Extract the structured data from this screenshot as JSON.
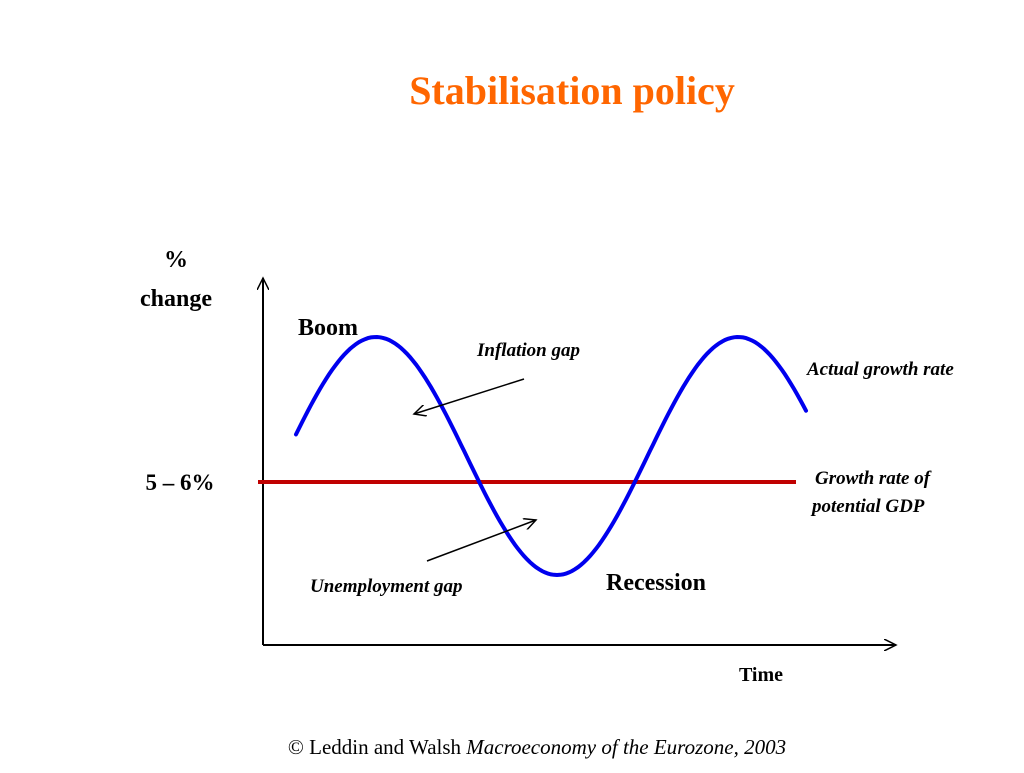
{
  "slide": {
    "title": "Stabilisation policy",
    "title_color": "#FF6600"
  },
  "diagram": {
    "y_axis_label_line1": "%",
    "y_axis_label_line2": "change",
    "x_axis_label": "Time",
    "potential_level_label": "5 – 6%",
    "boom_label": "Boom",
    "recession_label": "Recession",
    "inflation_gap_label": "Inflation gap",
    "unemployment_gap_label": "Unemployment gap",
    "actual_growth_label": "Actual growth rate",
    "potential_growth_label_line1": "Growth rate of",
    "potential_growth_label_line2": "potential GDP",
    "actual_curve_color": "#0000EE",
    "potential_line_color": "#C00000",
    "axis_color": "#000000"
  },
  "footer": {
    "citation_plain": "© Leddin and Walsh ",
    "citation_italic": "Macroeconomy of the Eurozone, 2003"
  }
}
